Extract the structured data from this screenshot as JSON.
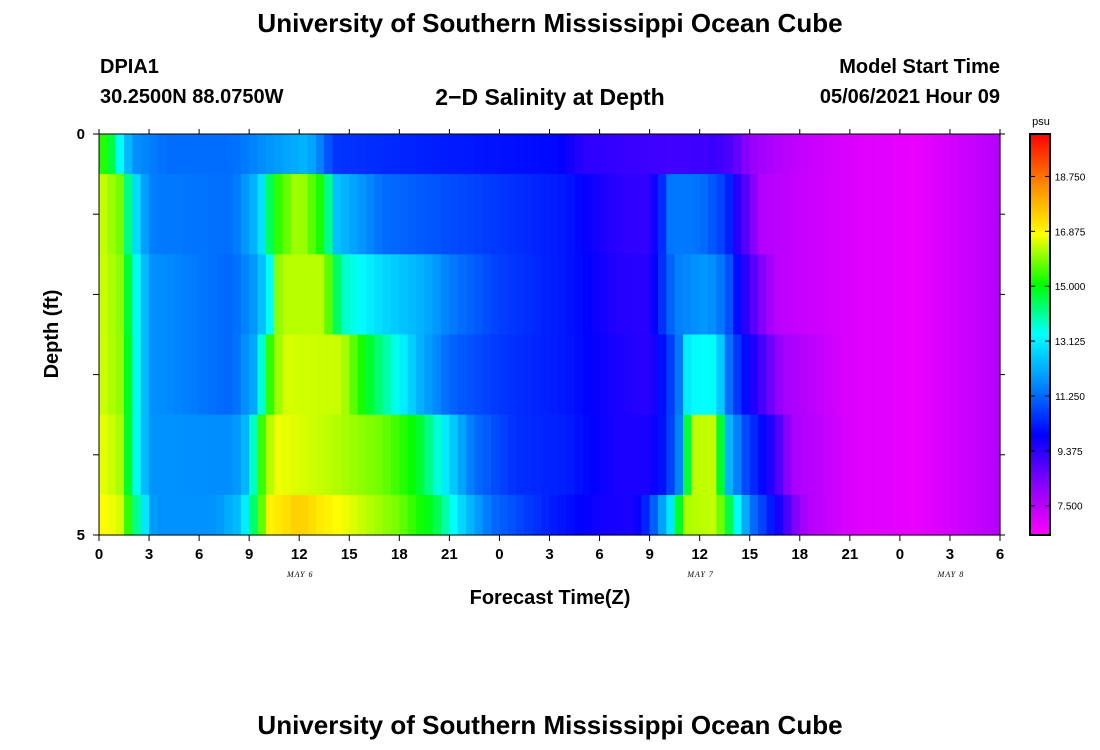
{
  "page": {
    "title_top": "University of Southern Mississippi Ocean Cube",
    "title_bottom": "University of Southern Mississippi Ocean Cube",
    "station_id": "DPIA1",
    "station_coords": "30.2500N  88.0750W",
    "chart_title": "2−D Salinity at Depth",
    "model_label": "Model Start Time",
    "model_time": "05/06/2021 Hour 09"
  },
  "chart_data": {
    "type": "heatmap",
    "title": "2−D Salinity at Depth",
    "xlabel": "Forecast Time(Z)",
    "ylabel": "Depth (ft)",
    "units": "psu",
    "xlim": [
      0,
      54
    ],
    "ylim": [
      0,
      5
    ],
    "x_ticks": [
      0,
      3,
      6,
      9,
      12,
      15,
      18,
      21,
      24,
      27,
      30,
      33,
      36,
      39,
      42,
      45,
      48,
      51,
      54
    ],
    "x_tick_labels": [
      "0",
      "3",
      "6",
      "9",
      "12",
      "15",
      "18",
      "21",
      "0",
      "3",
      "6",
      "9",
      "12",
      "15",
      "18",
      "21",
      "0",
      "3",
      "6"
    ],
    "date_labels": [
      {
        "label": "MAY 6",
        "x": 12
      },
      {
        "label": "MAY 7",
        "x": 36
      },
      {
        "label": "MAY 8",
        "x": 51
      }
    ],
    "y_tick_labels": [
      {
        "value": 0,
        "label": "0"
      },
      {
        "value": 1,
        "label": ""
      },
      {
        "value": 2,
        "label": ""
      },
      {
        "value": 3,
        "label": ""
      },
      {
        "value": 4,
        "label": ""
      },
      {
        "value": 5,
        "label": "5"
      }
    ],
    "colorbar": {
      "min": 6.5,
      "max": 20.2,
      "ticks": [
        18.75,
        16.875,
        15.0,
        13.125,
        11.25,
        9.375,
        7.5
      ],
      "tick_labels": [
        "18.750",
        "16.875",
        "15.000",
        "13.125",
        "11.250",
        "9.375",
        "7.500"
      ],
      "colors": [
        "#ff00ff",
        "#8800ff",
        "#0000ff",
        "#0088ff",
        "#00ffff",
        "#00ff00",
        "#ffff00",
        "#ff8800",
        "#ff0000"
      ]
    },
    "depth_bands": [
      {
        "depth": [
          0,
          0.5
        ],
        "profile": [
          [
            0,
            15.5
          ],
          [
            0.6,
            15.0
          ],
          [
            1.2,
            13.5
          ],
          [
            2,
            11.8
          ],
          [
            4,
            11.3
          ],
          [
            8,
            11.3
          ],
          [
            11,
            12.0
          ],
          [
            12.5,
            12.3
          ],
          [
            13.5,
            11.3
          ],
          [
            14,
            10.6
          ],
          [
            20,
            10.3
          ],
          [
            27.5,
            10.0
          ],
          [
            29,
            9.4
          ],
          [
            34,
            9.1
          ],
          [
            37,
            9.2
          ],
          [
            38,
            8.9
          ],
          [
            39,
            8.0
          ],
          [
            41,
            7.5
          ],
          [
            45,
            7.0
          ],
          [
            49,
            6.8
          ],
          [
            51,
            7.1
          ],
          [
            54,
            7.6
          ]
        ]
      },
      {
        "depth": [
          0.5,
          1.5
        ],
        "profile": [
          [
            0,
            16.5
          ],
          [
            1.3,
            15.8
          ],
          [
            2,
            13.3
          ],
          [
            3,
            11.5
          ],
          [
            8,
            11.3
          ],
          [
            9.6,
            12.5
          ],
          [
            10.5,
            15.2
          ],
          [
            12,
            16.3
          ],
          [
            13.5,
            15.0
          ],
          [
            14.2,
            12.5
          ],
          [
            17,
            11.3
          ],
          [
            22,
            10.8
          ],
          [
            28,
            10.2
          ],
          [
            31,
            9.4
          ],
          [
            33,
            9.3
          ],
          [
            33.6,
            10.2
          ],
          [
            34.3,
            11.5
          ],
          [
            36,
            11.4
          ],
          [
            37.6,
            10.6
          ],
          [
            38.2,
            9.5
          ],
          [
            39,
            8.6
          ],
          [
            39.6,
            7.6
          ],
          [
            45,
            7.0
          ],
          [
            49,
            6.8
          ],
          [
            51,
            7.1
          ],
          [
            54,
            7.6
          ]
        ]
      },
      {
        "depth": [
          1.5,
          2.5
        ],
        "profile": [
          [
            0,
            16.5
          ],
          [
            1.3,
            16.0
          ],
          [
            2,
            14.0
          ],
          [
            3,
            11.8
          ],
          [
            8,
            11.2
          ],
          [
            9.5,
            12.0
          ],
          [
            10.3,
            13.5
          ],
          [
            10.8,
            16.3
          ],
          [
            13.5,
            16.3
          ],
          [
            14.5,
            13.8
          ],
          [
            17,
            12.8
          ],
          [
            19.5,
            12.2
          ],
          [
            21,
            11.5
          ],
          [
            24,
            10.7
          ],
          [
            28,
            10.2
          ],
          [
            31,
            9.5
          ],
          [
            33,
            9.4
          ],
          [
            33.5,
            10.2
          ],
          [
            34.5,
            11.5
          ],
          [
            36.5,
            11.9
          ],
          [
            37.6,
            11.2
          ],
          [
            38.4,
            9.8
          ],
          [
            39.8,
            8.2
          ],
          [
            40.5,
            7.5
          ],
          [
            45,
            7.0
          ],
          [
            49,
            6.8
          ],
          [
            51,
            7.1
          ],
          [
            54,
            7.6
          ]
        ]
      },
      {
        "depth": [
          2.5,
          3.5
        ],
        "profile": [
          [
            0,
            16.5
          ],
          [
            1.4,
            16.0
          ],
          [
            2,
            14.0
          ],
          [
            3,
            11.8
          ],
          [
            8,
            11.2
          ],
          [
            9.5,
            12.3
          ],
          [
            10,
            15.0
          ],
          [
            11,
            16.5
          ],
          [
            14.5,
            16.4
          ],
          [
            16.5,
            14.5
          ],
          [
            18,
            13.3
          ],
          [
            19.3,
            12.2
          ],
          [
            21,
            11.2
          ],
          [
            24,
            10.6
          ],
          [
            28,
            10.2
          ],
          [
            31,
            9.6
          ],
          [
            33,
            9.4
          ],
          [
            34,
            10.3
          ],
          [
            34.8,
            11.5
          ],
          [
            35.3,
            13.3
          ],
          [
            37,
            13.4
          ],
          [
            37.6,
            11.5
          ],
          [
            38.5,
            10.3
          ],
          [
            40,
            8.8
          ],
          [
            41,
            7.8
          ],
          [
            45,
            7.0
          ],
          [
            49,
            6.8
          ],
          [
            51,
            7.1
          ],
          [
            54,
            7.6
          ]
        ]
      },
      {
        "depth": [
          3.5,
          4.5
        ],
        "profile": [
          [
            0,
            16.7
          ],
          [
            1.3,
            16.2
          ],
          [
            2,
            14.0
          ],
          [
            3,
            11.8
          ],
          [
            8,
            11.7
          ],
          [
            9,
            12.5
          ],
          [
            9.5,
            15.0
          ],
          [
            10.5,
            16.7
          ],
          [
            14,
            16.3
          ],
          [
            17,
            15.8
          ],
          [
            19,
            15.0
          ],
          [
            21,
            12.8
          ],
          [
            22.5,
            11.3
          ],
          [
            25,
            10.5
          ],
          [
            28,
            10.3
          ],
          [
            31,
            9.6
          ],
          [
            33,
            9.6
          ],
          [
            34,
            10.3
          ],
          [
            35,
            12.0
          ],
          [
            35.4,
            16.3
          ],
          [
            37,
            16.4
          ],
          [
            37.6,
            12.5
          ],
          [
            38.6,
            11.0
          ],
          [
            40,
            9.8
          ],
          [
            41,
            8.6
          ],
          [
            41.5,
            7.8
          ],
          [
            45,
            7.0
          ],
          [
            49,
            6.8
          ],
          [
            51,
            7.1
          ],
          [
            54,
            7.6
          ]
        ]
      },
      {
        "depth": [
          4.5,
          5
        ],
        "profile": [
          [
            0,
            16.9
          ],
          [
            1.3,
            16.5
          ],
          [
            2.3,
            14.0
          ],
          [
            3.3,
            11.8
          ],
          [
            7,
            11.8
          ],
          [
            8.5,
            12.5
          ],
          [
            9.3,
            14.5
          ],
          [
            10.2,
            16.9
          ],
          [
            12,
            17.5
          ],
          [
            13.5,
            17.0
          ],
          [
            18,
            15.8
          ],
          [
            20,
            14.8
          ],
          [
            22,
            12.5
          ],
          [
            23.5,
            11.3
          ],
          [
            27,
            10.3
          ],
          [
            30,
            9.7
          ],
          [
            32,
            9.6
          ],
          [
            32.5,
            10.0
          ],
          [
            33.5,
            11.5
          ],
          [
            34.5,
            13.5
          ],
          [
            35,
            16.2
          ],
          [
            37,
            16.4
          ],
          [
            38,
            14.0
          ],
          [
            39,
            11.5
          ],
          [
            40.5,
            10.0
          ],
          [
            41.8,
            8.2
          ],
          [
            42.5,
            7.6
          ],
          [
            45,
            7.0
          ],
          [
            49,
            6.8
          ],
          [
            51,
            7.1
          ],
          [
            54,
            7.6
          ]
        ]
      }
    ]
  }
}
